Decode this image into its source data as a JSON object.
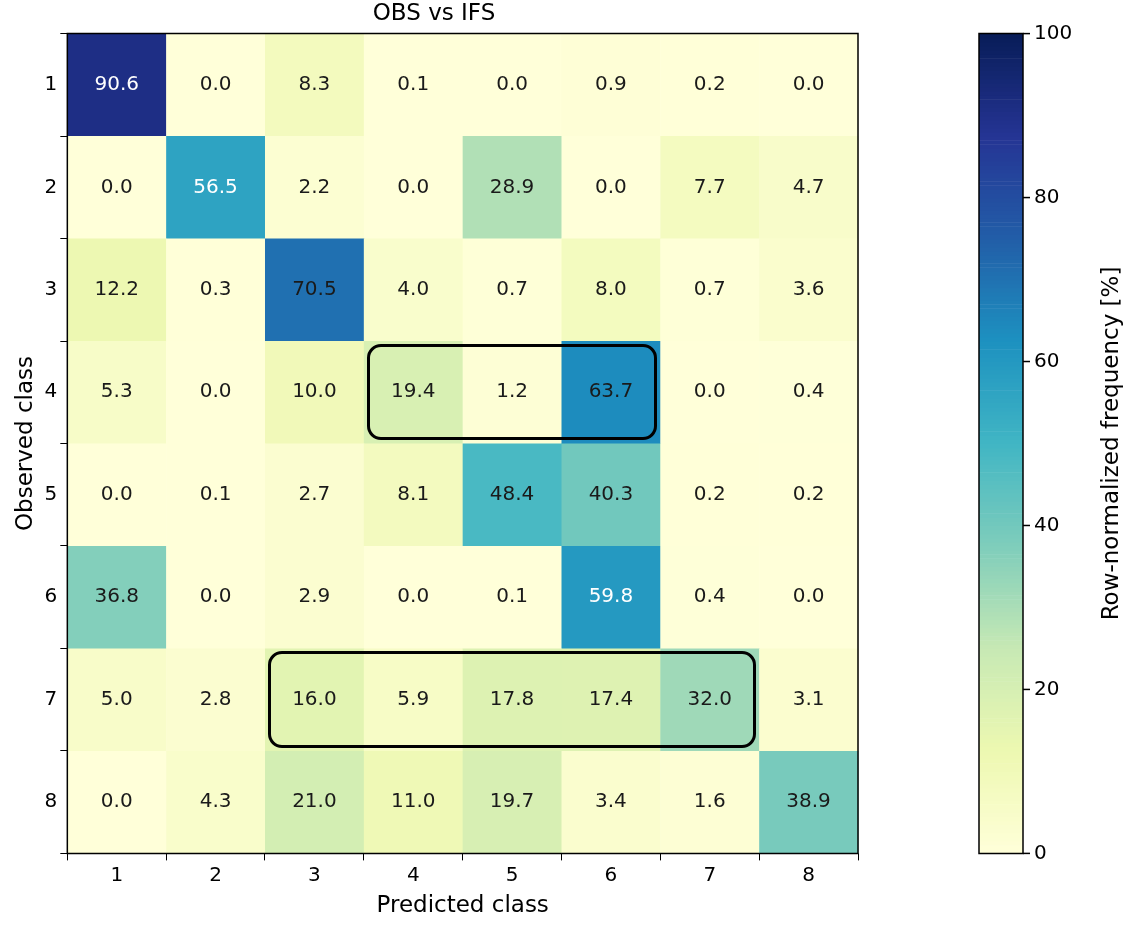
{
  "chart_data": {
    "type": "heatmap",
    "title": "OBS vs IFS",
    "xlabel": "Predicted class",
    "ylabel": "Observed class",
    "clabel": "Row-normalized frequency [%]",
    "categories": [
      "1",
      "2",
      "3",
      "4",
      "5",
      "6",
      "7",
      "8"
    ],
    "y_categories": [
      "1",
      "2",
      "3",
      "4",
      "5",
      "6",
      "7",
      "8"
    ],
    "cells": [
      [
        90.6,
        0.0,
        8.3,
        0.1,
        0.0,
        0.9,
        0.2,
        0.0
      ],
      [
        0.0,
        56.5,
        2.2,
        0.0,
        28.9,
        0.0,
        7.7,
        4.7
      ],
      [
        12.2,
        0.3,
        70.5,
        4.0,
        0.7,
        8.0,
        0.7,
        3.6
      ],
      [
        5.3,
        0.0,
        10.0,
        19.4,
        1.2,
        63.7,
        0.0,
        0.4
      ],
      [
        0.0,
        0.1,
        2.7,
        8.1,
        48.4,
        40.3,
        0.2,
        0.2
      ],
      [
        36.8,
        0.0,
        2.9,
        0.0,
        0.1,
        59.8,
        0.4,
        0.0
      ],
      [
        5.0,
        2.8,
        16.0,
        5.9,
        17.8,
        17.4,
        32.0,
        3.1
      ],
      [
        0.0,
        4.3,
        21.0,
        11.0,
        19.7,
        3.4,
        1.6,
        38.9
      ]
    ],
    "cell_labels": [
      [
        "90.6",
        "0.0",
        "8.3",
        "0.1",
        "0.0",
        "0.9",
        "0.2",
        "0.0"
      ],
      [
        "0.0",
        "56.5",
        "2.2",
        "0.0",
        "28.9",
        "0.0",
        "7.7",
        "4.7"
      ],
      [
        "12.2",
        "0.3",
        "70.5",
        "4.0",
        "0.7",
        "8.0",
        "0.7",
        "3.6"
      ],
      [
        "5.3",
        "0.0",
        "10.0",
        "19.4",
        "1.2",
        "63.7",
        "0.0",
        "0.4"
      ],
      [
        "0.0",
        "0.1",
        "2.7",
        "8.1",
        "48.4",
        "40.3",
        "0.2",
        "0.2"
      ],
      [
        "36.8",
        "0.0",
        "2.9",
        "0.0",
        "0.1",
        "59.8",
        "0.4",
        "0.0"
      ],
      [
        "5.0",
        "2.8",
        "16.0",
        "5.9",
        "17.8",
        "17.4",
        "32.0",
        "3.1"
      ],
      [
        "0.0",
        "4.3",
        "21.0",
        "11.0",
        "19.7",
        "3.4",
        "1.6",
        "38.9"
      ]
    ],
    "data_labels": true,
    "clim": [
      0,
      100
    ],
    "cticks": [
      0,
      20,
      40,
      60,
      80,
      100
    ]
  }
}
